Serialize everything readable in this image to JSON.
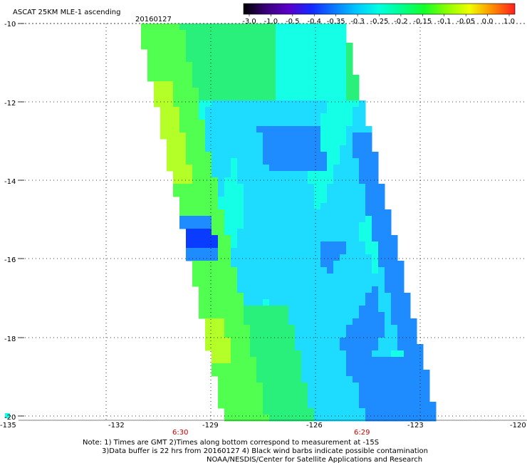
{
  "title": "ASCAT 25KM MLE-1 ascending",
  "date": "20160127",
  "colorbar": {
    "labels": [
      "-3.0",
      "-1.0",
      "-0.5",
      "-0.4",
      "-0.35",
      "-0.3",
      "-0.25",
      "-0.2",
      "-0.15",
      "-0.1",
      "-0.05",
      "0.0",
      "1.0"
    ],
    "colors": [
      "#000000",
      "#3a007a",
      "#5a00c8",
      "#1428ff",
      "#0a78ff",
      "#00c8ff",
      "#00ffe0",
      "#00ff8c",
      "#14ff28",
      "#8cff00",
      "#f0ff00",
      "#ff8c00",
      "#ff1e1e"
    ]
  },
  "axes": {
    "lat_labels": [
      "-10",
      "-12",
      "-14",
      "-16",
      "-18",
      "-20"
    ],
    "lon_labels": [
      "-135",
      "-132",
      "-129",
      "-126",
      "-123",
      "-120"
    ]
  },
  "times": [
    "6:30",
    "6:29"
  ],
  "notes": {
    "line1": "Note: 1) Times are GMT 2)Times along bottom correspond to measurement at -15S",
    "line2": "3)Data buffer is 22 hrs from 20160127 4) Black wind barbs indicate possible contamination",
    "line3": "NOAA/NESDIS/Center for Satellite Applications and Research"
  },
  "swath_colors": {
    "green": "#28f07a",
    "light_green": "#50ff50",
    "yellow_green": "#b4ff28",
    "cyan": "#14ffe6",
    "light_blue": "#1edcff",
    "blue": "#1e8cff",
    "deep_blue": "#0a3cff"
  }
}
